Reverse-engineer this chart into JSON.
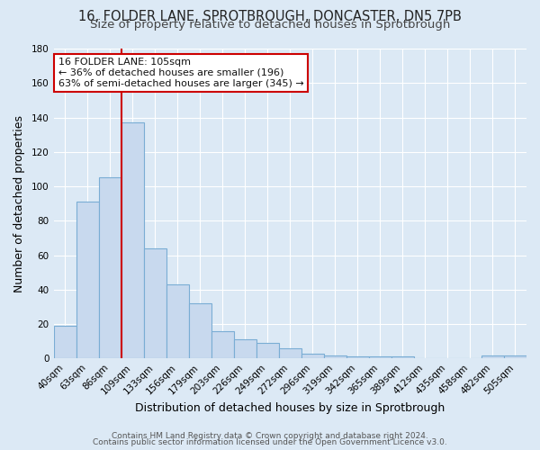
{
  "title": "16, FOLDER LANE, SPROTBROUGH, DONCASTER, DN5 7PB",
  "subtitle": "Size of property relative to detached houses in Sprotbrough",
  "xlabel": "Distribution of detached houses by size in Sprotbrough",
  "ylabel": "Number of detached properties",
  "footer_line1": "Contains HM Land Registry data © Crown copyright and database right 2024.",
  "footer_line2": "Contains public sector information licensed under the Open Government Licence v3.0.",
  "categories": [
    "40sqm",
    "63sqm",
    "86sqm",
    "109sqm",
    "133sqm",
    "156sqm",
    "179sqm",
    "203sqm",
    "226sqm",
    "249sqm",
    "272sqm",
    "296sqm",
    "319sqm",
    "342sqm",
    "365sqm",
    "389sqm",
    "412sqm",
    "435sqm",
    "458sqm",
    "482sqm",
    "505sqm"
  ],
  "values": [
    19,
    91,
    105,
    137,
    64,
    43,
    32,
    16,
    11,
    9,
    6,
    3,
    2,
    1,
    1,
    1,
    0,
    0,
    0,
    2,
    2
  ],
  "bar_color": "#c8d9ee",
  "bar_edge_color": "#7aadd4",
  "ylim": [
    0,
    180
  ],
  "yticks": [
    0,
    20,
    40,
    60,
    80,
    100,
    120,
    140,
    160,
    180
  ],
  "vline_index": 3,
  "vline_color": "#cc0000",
  "annotation_title": "16 FOLDER LANE: 105sqm",
  "annotation_line1": "← 36% of detached houses are smaller (196)",
  "annotation_line2": "63% of semi-detached houses are larger (345) →",
  "annotation_box_facecolor": "#ffffff",
  "annotation_box_edgecolor": "#cc0000",
  "background_color": "#dce9f5",
  "plot_bg_color": "#dce9f5",
  "grid_color": "#ffffff",
  "title_fontsize": 10.5,
  "subtitle_fontsize": 9.5,
  "axis_label_fontsize": 9,
  "tick_fontsize": 7.5,
  "footer_fontsize": 6.5,
  "annotation_fontsize": 8.0
}
